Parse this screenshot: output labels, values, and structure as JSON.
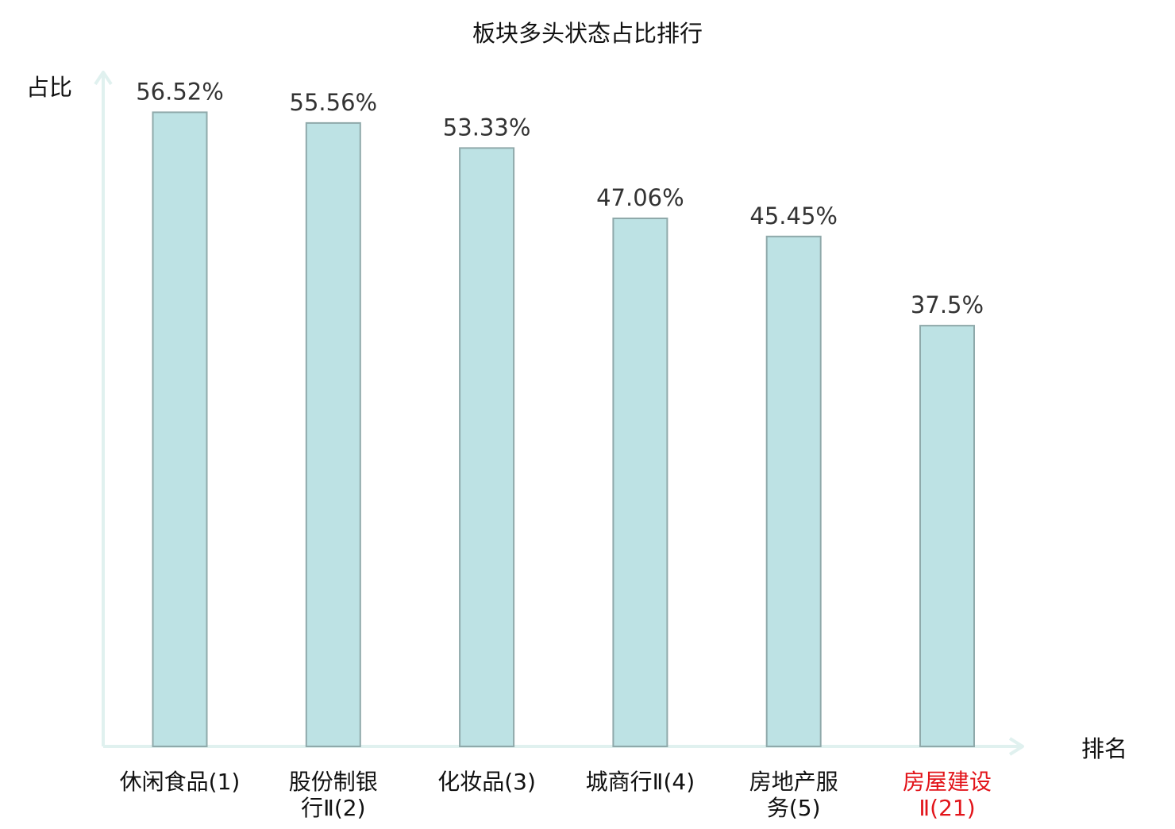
{
  "chart_data": {
    "type": "bar",
    "title": "板块多头状态占比排行",
    "ylabel": "占比",
    "xlabel": "排名",
    "ylim": [
      0,
      60
    ],
    "grid": false,
    "legend": "none",
    "categories": [
      [
        "休闲食品(1)"
      ],
      [
        "股份制银",
        "行Ⅱ(2)"
      ],
      [
        "化妆品(3)"
      ],
      [
        "城商行Ⅱ(4)"
      ],
      [
        "房地产服",
        "务(5)"
      ],
      [
        "房屋建设",
        "Ⅱ(21)"
      ]
    ],
    "values": [
      56.52,
      55.56,
      53.33,
      47.06,
      45.45,
      37.5
    ],
    "value_labels": [
      "56.52%",
      "55.56%",
      "53.33%",
      "47.06%",
      "45.45%",
      "37.5%"
    ],
    "highlighted_category_index": 5,
    "colors": {
      "bar_fill": "#bde2e4",
      "bar_stroke": "#8fa9aa",
      "axis": "#e0f1ef",
      "text": "#111111",
      "value_label": "#333333",
      "highlight": "#e2141a"
    }
  }
}
